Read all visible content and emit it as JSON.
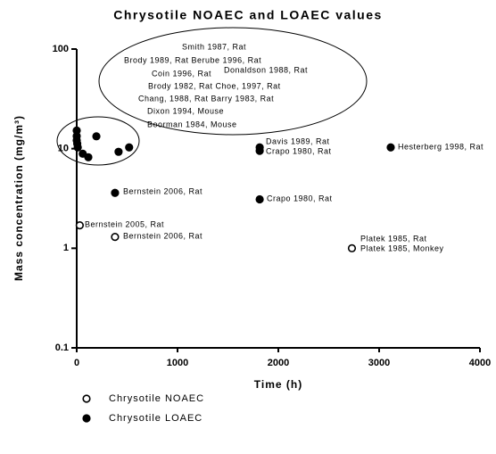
{
  "chart_data": {
    "type": "scatter",
    "title": "Chrysotile NOAEC and LOAEC values",
    "xlabel": "Time (h)",
    "ylabel": "Mass concentration (mg/m³)",
    "xlim": [
      0,
      4000
    ],
    "xticks": [
      0,
      1000,
      2000,
      3000,
      4000
    ],
    "ylim": [
      0.1,
      100
    ],
    "yticks": [
      0.1,
      1,
      10,
      100
    ],
    "ylog": true,
    "grid": false,
    "legend": "bottom-left",
    "series": [
      {
        "name": "Chrysotile NOAEC",
        "color": "#000000",
        "filled": false,
        "x": [
          30,
          380,
          2730
        ],
        "values": [
          1.7,
          1.3,
          1
        ]
      },
      {
        "name": "Chrysotile LOAEC",
        "color": "#000000",
        "filled": true,
        "x": [
          0,
          0,
          0,
          5,
          10,
          60,
          115,
          195,
          415,
          520,
          1815,
          1815,
          3115,
          380,
          1815
        ],
        "values": [
          15.2,
          13.4,
          12.1,
          11.2,
          10.3,
          8.9,
          8.2,
          13.3,
          9.3,
          10.3,
          10.3,
          9.5,
          10.3,
          3.6,
          3.1
        ]
      }
    ],
    "annotations": [
      "Smith 1987, Rat",
      "Brody 1989, Rat Berube 1996, Rat",
      "Coin 1996, Rat",
      "Donaldson 1988, Rat",
      "Brody 1982, Rat Choe, 1997, Rat",
      "Chang, 1988, Rat Barry 1983, Rat",
      "Dixon 1994, Mouse",
      "Boorman 1984, Mouse",
      "Davis 1989, Rat",
      "Crapo 1980, Rat",
      "Hesterberg 1998, Rat",
      "Bernstein 2006, Rat",
      "Crapo 1980, Rat",
      "Bernstein 2005, Rat",
      "Bernstein 2006, Rat",
      "Platek 1985, Rat",
      "Platek 1985, Monkey"
    ]
  }
}
